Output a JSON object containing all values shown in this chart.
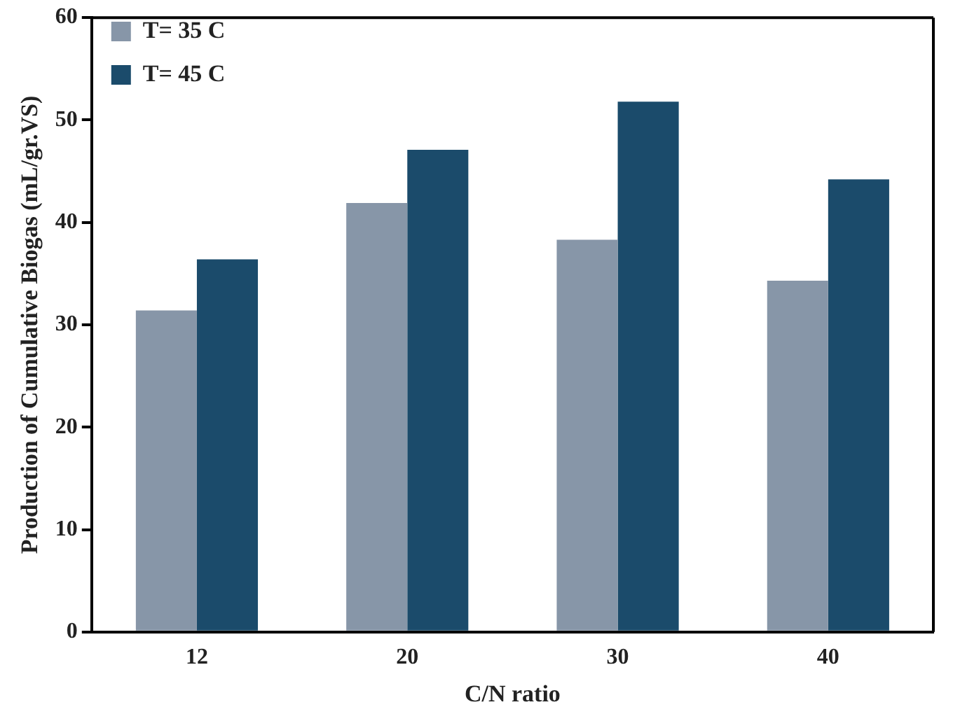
{
  "chart_data": {
    "type": "bar",
    "xlabel": "C/N ratio",
    "ylabel": "Production of Cumulative Biogas (mL/gr.VS)",
    "categories": [
      "12",
      "20",
      "30",
      "40"
    ],
    "series": [
      {
        "name": "T= 35 C",
        "color": "#8796a8",
        "values": [
          31.4,
          41.9,
          38.3,
          34.3
        ]
      },
      {
        "name": "T= 45 C",
        "color": "#1b4b6b",
        "values": [
          36.4,
          47.1,
          51.8,
          44.2
        ]
      }
    ],
    "ylim": [
      0,
      60
    ],
    "yticks": [
      0,
      10,
      20,
      30,
      40,
      50,
      60
    ],
    "grid": false,
    "legend": "top left"
  }
}
